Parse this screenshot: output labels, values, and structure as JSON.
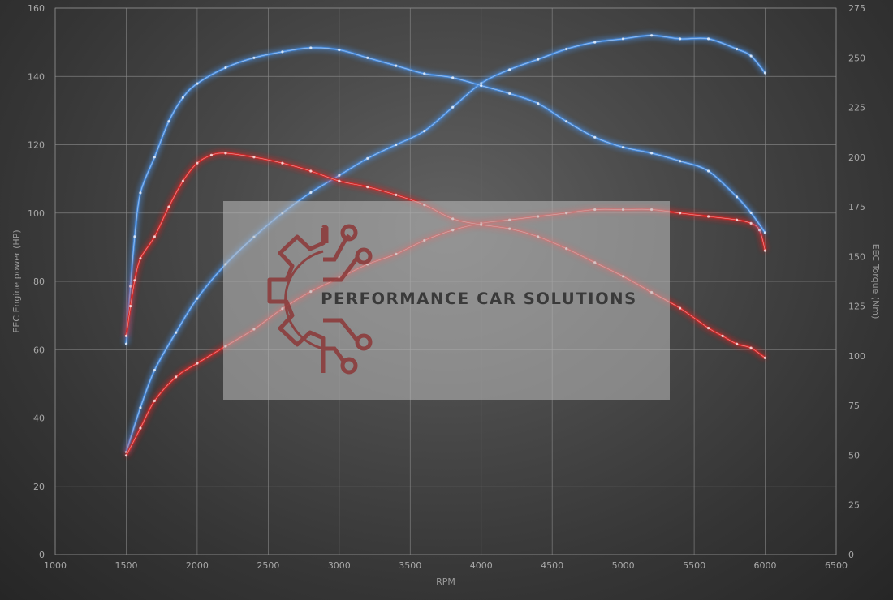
{
  "chart_data": {
    "type": "line",
    "xlabel": "RPM",
    "ylabel_left": "EEC Engine power (HP)",
    "ylabel_right": "EEC Torque (Nm)",
    "xlim": [
      1000,
      6500
    ],
    "ylim_left": [
      0,
      160
    ],
    "ylim_right": [
      0,
      275
    ],
    "x_ticks": [
      1000,
      1500,
      2000,
      2500,
      3000,
      3500,
      4000,
      4500,
      5000,
      5500,
      6000,
      6500
    ],
    "y_left_ticks": [
      0,
      20,
      40,
      60,
      80,
      100,
      120,
      140,
      160
    ],
    "y_right_ticks": [
      0,
      25,
      50,
      75,
      100,
      125,
      150,
      175,
      200,
      225,
      250,
      275
    ],
    "grid": true,
    "series": [
      {
        "kind": "power-tuned",
        "axis": "left",
        "color": "#4a8ee0",
        "points": [
          [
            1500,
            30
          ],
          [
            1600,
            43
          ],
          [
            1700,
            54
          ],
          [
            1850,
            65
          ],
          [
            2000,
            75
          ],
          [
            2200,
            85
          ],
          [
            2400,
            93
          ],
          [
            2600,
            100
          ],
          [
            2800,
            106
          ],
          [
            3000,
            111
          ],
          [
            3200,
            116
          ],
          [
            3400,
            120
          ],
          [
            3600,
            124
          ],
          [
            3800,
            131
          ],
          [
            4000,
            138
          ],
          [
            4200,
            142
          ],
          [
            4400,
            145
          ],
          [
            4600,
            148
          ],
          [
            4800,
            150
          ],
          [
            5000,
            151
          ],
          [
            5200,
            152
          ],
          [
            5400,
            151
          ],
          [
            5600,
            151
          ],
          [
            5800,
            148
          ],
          [
            5900,
            146
          ],
          [
            6000,
            141
          ]
        ]
      },
      {
        "kind": "power-stock",
        "axis": "left",
        "color": "#d42828",
        "points": [
          [
            1500,
            29
          ],
          [
            1600,
            37
          ],
          [
            1700,
            45
          ],
          [
            1850,
            52
          ],
          [
            2000,
            56
          ],
          [
            2200,
            61
          ],
          [
            2400,
            66
          ],
          [
            2600,
            72
          ],
          [
            2800,
            77
          ],
          [
            3000,
            81
          ],
          [
            3200,
            85
          ],
          [
            3400,
            88
          ],
          [
            3600,
            92
          ],
          [
            3800,
            95
          ],
          [
            4000,
            97
          ],
          [
            4200,
            98
          ],
          [
            4400,
            99
          ],
          [
            4600,
            100
          ],
          [
            4800,
            101
          ],
          [
            5000,
            101
          ],
          [
            5200,
            101
          ],
          [
            5400,
            100
          ],
          [
            5600,
            99
          ],
          [
            5800,
            98
          ],
          [
            5900,
            97
          ],
          [
            5960,
            95
          ],
          [
            6000,
            89
          ]
        ]
      },
      {
        "kind": "torque-tuned",
        "axis": "right",
        "color": "#4a8ee0",
        "points": [
          [
            1500,
            106
          ],
          [
            1530,
            135
          ],
          [
            1560,
            160
          ],
          [
            1600,
            182
          ],
          [
            1700,
            200
          ],
          [
            1800,
            218
          ],
          [
            1900,
            230
          ],
          [
            2000,
            237
          ],
          [
            2200,
            245
          ],
          [
            2400,
            250
          ],
          [
            2600,
            253
          ],
          [
            2800,
            255
          ],
          [
            3000,
            254
          ],
          [
            3200,
            250
          ],
          [
            3400,
            246
          ],
          [
            3600,
            242
          ],
          [
            3800,
            240
          ],
          [
            4000,
            236
          ],
          [
            4200,
            232
          ],
          [
            4400,
            227
          ],
          [
            4600,
            218
          ],
          [
            4800,
            210
          ],
          [
            5000,
            205
          ],
          [
            5200,
            202
          ],
          [
            5400,
            198
          ],
          [
            5600,
            193
          ],
          [
            5800,
            180
          ],
          [
            5900,
            172
          ],
          [
            6000,
            162
          ]
        ]
      },
      {
        "kind": "torque-stock",
        "axis": "right",
        "color": "#d42828",
        "points": [
          [
            1500,
            110
          ],
          [
            1530,
            125
          ],
          [
            1560,
            138
          ],
          [
            1600,
            149
          ],
          [
            1700,
            160
          ],
          [
            1800,
            175
          ],
          [
            1900,
            188
          ],
          [
            2000,
            197
          ],
          [
            2100,
            201
          ],
          [
            2200,
            202
          ],
          [
            2400,
            200
          ],
          [
            2600,
            197
          ],
          [
            2800,
            193
          ],
          [
            3000,
            188
          ],
          [
            3200,
            185
          ],
          [
            3400,
            181
          ],
          [
            3600,
            176
          ],
          [
            3800,
            169
          ],
          [
            4000,
            166
          ],
          [
            4200,
            164
          ],
          [
            4400,
            160
          ],
          [
            4600,
            154
          ],
          [
            4800,
            147
          ],
          [
            5000,
            140
          ],
          [
            5200,
            132
          ],
          [
            5400,
            124
          ],
          [
            5600,
            114
          ],
          [
            5700,
            110
          ],
          [
            5800,
            106
          ],
          [
            5900,
            104
          ],
          [
            6000,
            99
          ]
        ]
      }
    ]
  },
  "watermark": {
    "text": "PERFORMANCE CAR SOLUTIONS",
    "logo_icon": "gear-circuit-logo-icon",
    "logo_color": "#8c3838"
  }
}
